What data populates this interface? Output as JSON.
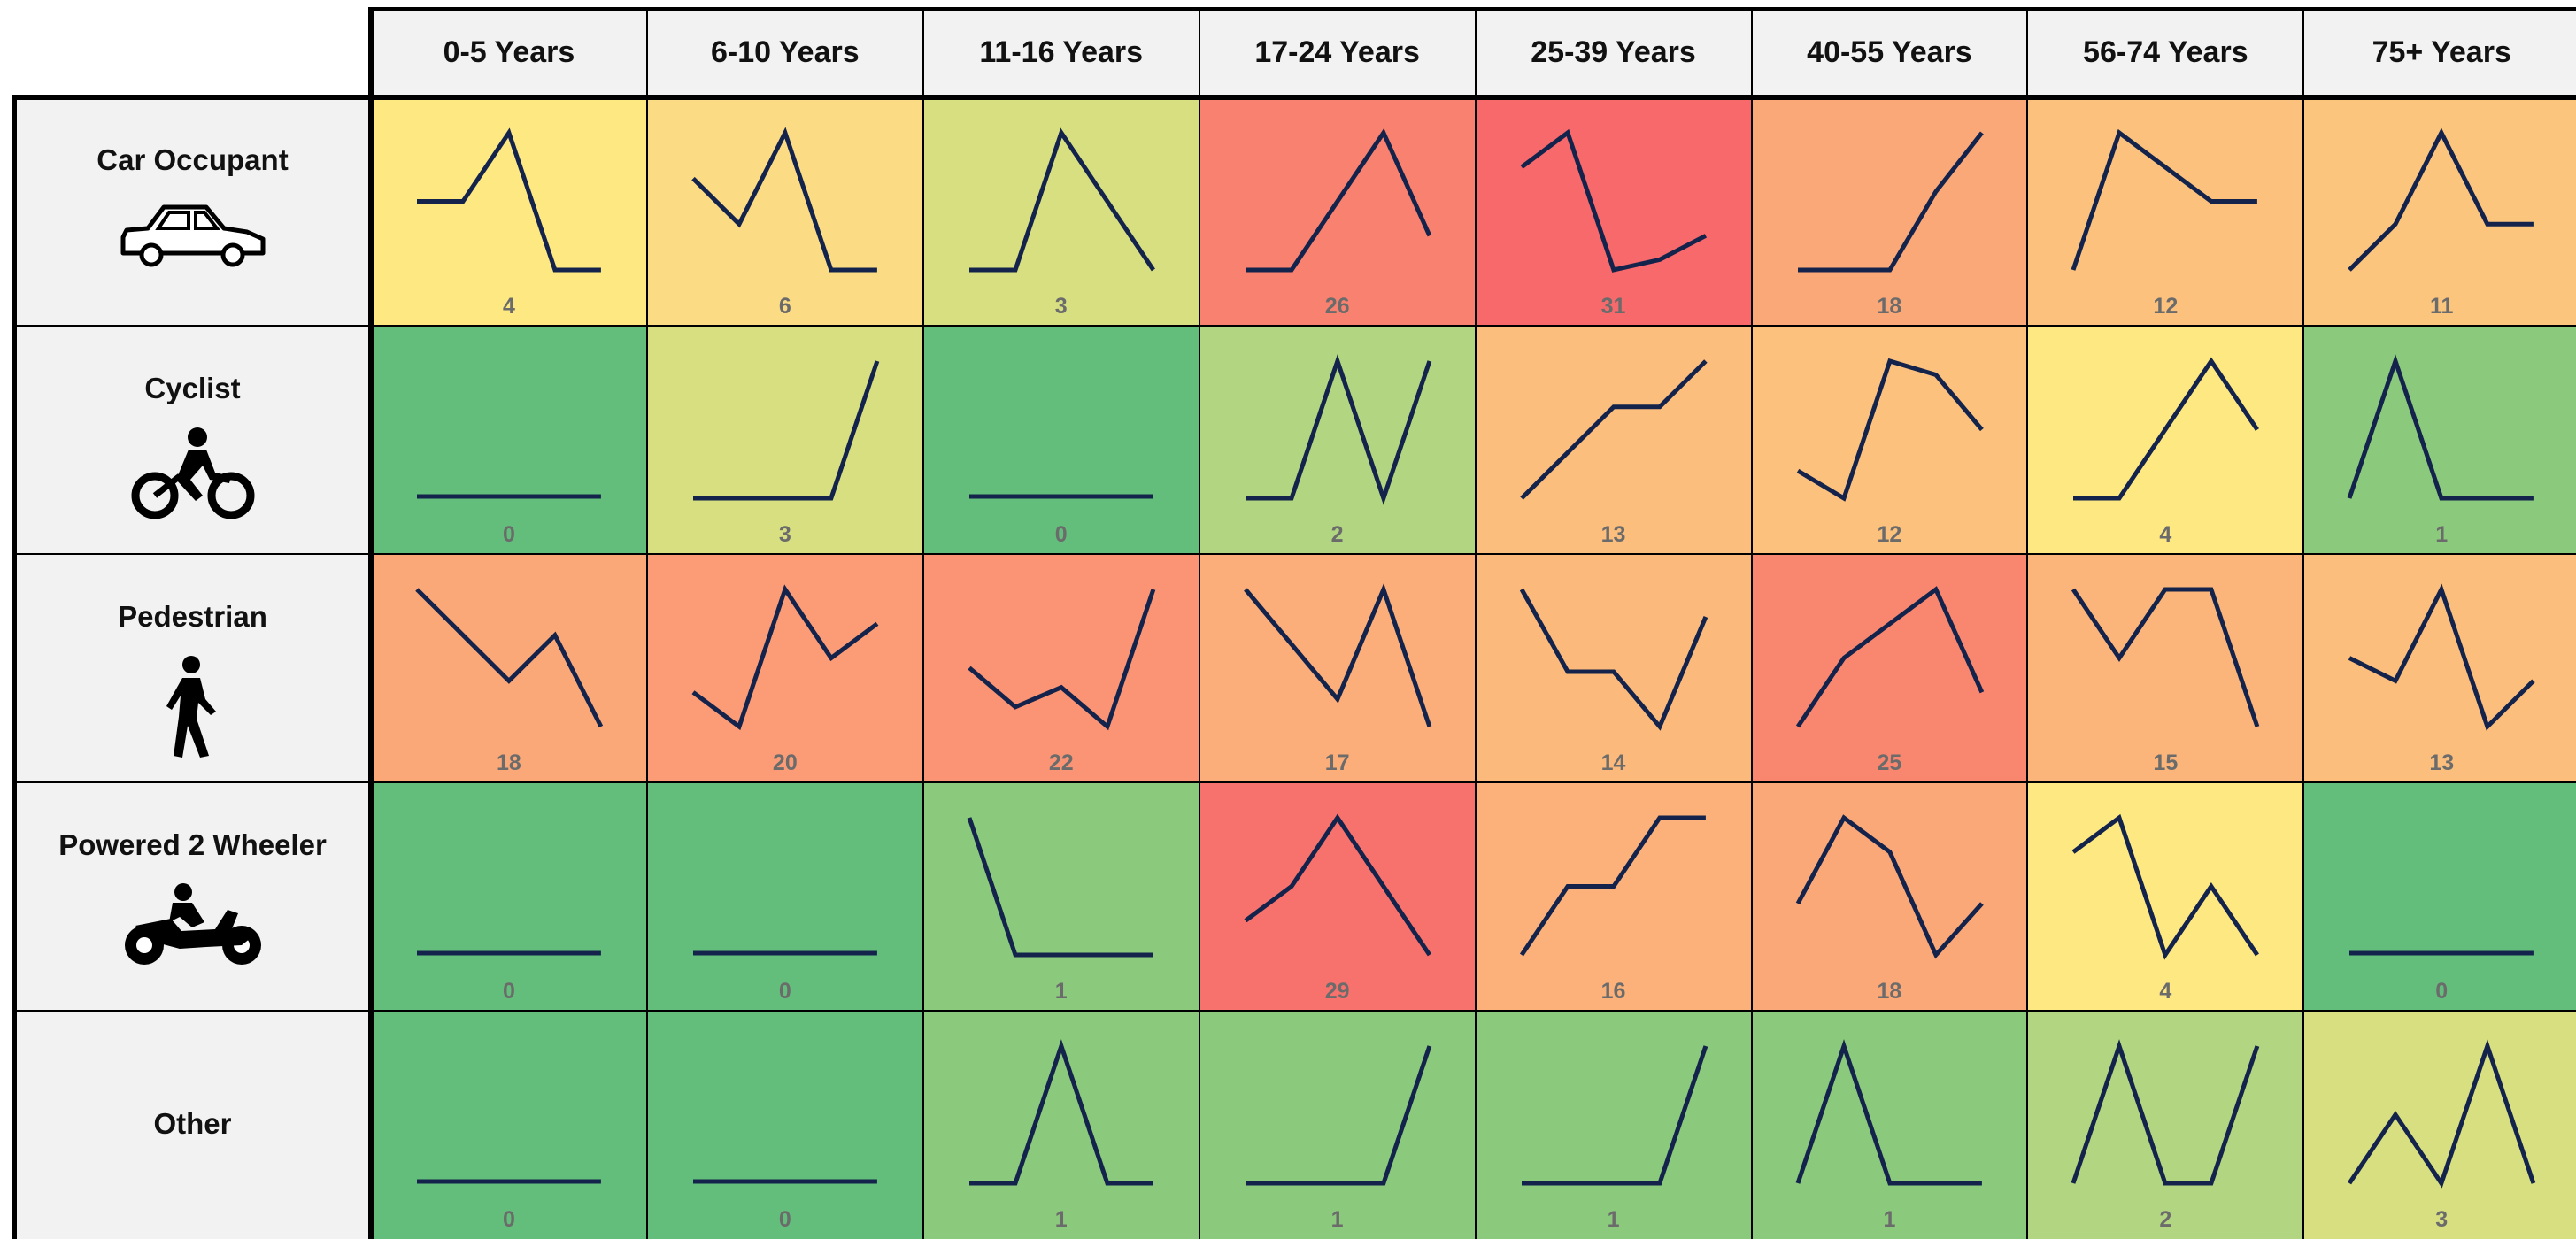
{
  "colors": {
    "line": "#13234b",
    "header_bg": "#f2f2f2",
    "grid": "#000000",
    "total_text": "#6b6b6b"
  },
  "chart_data": {
    "type": "heatmap",
    "columns": [
      "0-5 Years",
      "6-10 Years",
      "11-16 Years",
      "17-24 Years",
      "25-39 Years",
      "40-55 Years",
      "56-74 Years",
      "75+ Years"
    ],
    "rows": [
      {
        "label": "Car Occupant",
        "icon": "car-icon",
        "cells": [
          {
            "total": 4,
            "trend": [
              1,
              1,
              2,
              0,
              0
            ],
            "color": "#fde882"
          },
          {
            "total": 6,
            "trend": [
              2,
              1,
              3,
              0,
              0
            ],
            "color": "#fbdc85"
          },
          {
            "total": 3,
            "trend": [
              0,
              0,
              2,
              1,
              0
            ],
            "color": "#d7df81"
          },
          {
            "total": 26,
            "trend": [
              1,
              1,
              3,
              5,
              2
            ],
            "color": "#f8816f"
          },
          {
            "total": 31,
            "trend": [
              4,
              5,
              1,
              1.3,
              2
            ],
            "color": "#f8696b"
          },
          {
            "total": 18,
            "trend": [
              1,
              1,
              1,
              3,
              4.5
            ],
            "color": "#fba878"
          },
          {
            "total": 12,
            "trend": [
              0,
              2,
              1.5,
              1,
              1
            ],
            "color": "#fbc17d"
          },
          {
            "total": 11,
            "trend": [
              0,
              0.5,
              1.5,
              0.5,
              0.5
            ],
            "color": "#fbc57e"
          }
        ]
      },
      {
        "label": "Cyclist",
        "icon": "cyclist-icon",
        "cells": [
          {
            "total": 0,
            "trend": [
              0,
              0,
              0,
              0,
              0
            ],
            "color": "#63be7b"
          },
          {
            "total": 3,
            "trend": [
              0,
              0,
              0,
              0,
              2
            ],
            "color": "#d7df81"
          },
          {
            "total": 0,
            "trend": [
              0,
              0,
              0,
              0,
              0
            ],
            "color": "#63be7b"
          },
          {
            "total": 2,
            "trend": [
              0,
              0,
              1,
              0,
              1
            ],
            "color": "#b1d580"
          },
          {
            "total": 13,
            "trend": [
              0,
              1,
              2,
              2,
              3
            ],
            "color": "#fcbe7c"
          },
          {
            "total": 12,
            "trend": [
              1,
              0,
              5,
              4.5,
              2.5
            ],
            "color": "#fbc17d"
          },
          {
            "total": 4,
            "trend": [
              0,
              0,
              1,
              2,
              1
            ],
            "color": "#fde882"
          },
          {
            "total": 1,
            "trend": [
              0,
              1,
              0,
              0,
              0
            ],
            "color": "#8bc97d"
          }
        ]
      },
      {
        "label": "Pedestrian",
        "icon": "pedestrian-icon",
        "cells": [
          {
            "total": 18,
            "trend": [
              2,
              1.5,
              1,
              1.5,
              0.5
            ],
            "color": "#fba878"
          },
          {
            "total": 20,
            "trend": [
              0.5,
              0,
              2,
              1,
              1.5
            ],
            "color": "#fb9c76"
          },
          {
            "total": 22,
            "trend": [
              1,
              0,
              0.5,
              -0.5,
              3
            ],
            "color": "#fa9474"
          },
          {
            "total": 17,
            "trend": [
              2,
              1,
              0,
              2,
              -0.5
            ],
            "color": "#fbae79"
          },
          {
            "total": 14,
            "trend": [
              2,
              0.5,
              0.5,
              -0.5,
              1.5
            ],
            "color": "#fbba7b"
          },
          {
            "total": 25,
            "trend": [
              1,
              2,
              2.5,
              3,
              1.5
            ],
            "color": "#f9876f"
          },
          {
            "total": 15,
            "trend": [
              1,
              0,
              1,
              1,
              -1
            ],
            "color": "#fbb57a"
          },
          {
            "total": 13,
            "trend": [
              0.5,
              0,
              2,
              -1,
              0
            ],
            "color": "#fbbe7c"
          }
        ]
      },
      {
        "label": "Powered 2 Wheeler",
        "icon": "motorcycle-icon",
        "cells": [
          {
            "total": 0,
            "trend": [
              0,
              0,
              0,
              0,
              0
            ],
            "color": "#63be7b"
          },
          {
            "total": 0,
            "trend": [
              0,
              0,
              0,
              0,
              0
            ],
            "color": "#63be7b"
          },
          {
            "total": 1,
            "trend": [
              2,
              0,
              0,
              0,
              0
            ],
            "color": "#8bc97d"
          },
          {
            "total": 29,
            "trend": [
              2,
              2.5,
              3.5,
              2.5,
              1.5
            ],
            "color": "#f8726d"
          },
          {
            "total": 16,
            "trend": [
              0,
              1,
              1,
              2,
              2
            ],
            "color": "#fbb179"
          },
          {
            "total": 18,
            "trend": [
              1.5,
              4,
              3,
              0,
              1.5
            ],
            "color": "#fba878"
          },
          {
            "total": 4,
            "trend": [
              2,
              3,
              -1,
              1,
              -1
            ],
            "color": "#fde882"
          },
          {
            "total": 0,
            "trend": [
              0,
              0,
              0,
              0,
              0
            ],
            "color": "#63be7b"
          }
        ]
      },
      {
        "label": "Other",
        "icon": "",
        "cells": [
          {
            "total": 0,
            "trend": [
              0,
              0,
              0,
              0,
              0
            ],
            "color": "#63be7b"
          },
          {
            "total": 0,
            "trend": [
              0,
              0,
              0,
              0,
              0
            ],
            "color": "#63be7b"
          },
          {
            "total": 1,
            "trend": [
              0,
              0,
              1,
              0,
              0
            ],
            "color": "#8bc97d"
          },
          {
            "total": 1,
            "trend": [
              0,
              0,
              0,
              0,
              1
            ],
            "color": "#8bc97d"
          },
          {
            "total": 1,
            "trend": [
              0,
              0,
              0,
              0,
              1
            ],
            "color": "#8bc97d"
          },
          {
            "total": 1,
            "trend": [
              0,
              1,
              0,
              0,
              0
            ],
            "color": "#8bc97d"
          },
          {
            "total": 2,
            "trend": [
              0,
              1,
              0,
              0,
              1
            ],
            "color": "#b1d580"
          },
          {
            "total": 3,
            "trend": [
              0,
              1,
              0,
              2,
              0
            ],
            "color": "#d7df81"
          }
        ]
      }
    ]
  }
}
